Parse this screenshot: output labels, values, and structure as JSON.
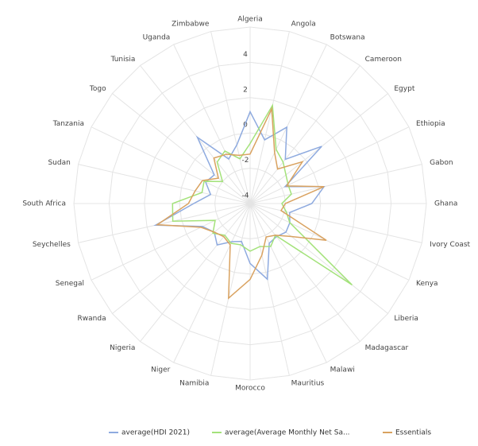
{
  "chart_data": {
    "type": "radar",
    "categories": [
      "Algeria",
      "Angola",
      "Botswana",
      "Cameroon",
      "Egypt",
      "Ethiopia",
      "Gabon",
      "Ghana",
      "Ivory Coast",
      "Kenya",
      "Liberia",
      "Madagascar",
      "Malawi",
      "Mauritius",
      "Morocco",
      "Namibia",
      "Niger",
      "Nigeria",
      "Rwanda",
      "Senegal",
      "Seychelles",
      "South Africa",
      "Sudan",
      "Tanzania",
      "Togo",
      "Tunisia",
      "Uganda",
      "Zimbabwe"
    ],
    "series": [
      {
        "name": "average(HDI 2021)",
        "color": "#8eaadf",
        "values": [
          1.2,
          -0.3,
          0.8,
          -0.8,
          1.2,
          -1.8,
          0.3,
          -0.5,
          -1.7,
          -1.5,
          -1.4,
          -1.6,
          -1.5,
          0.4,
          -0.6,
          -1.8,
          -1.6,
          -1.0,
          -1.4,
          -1.0,
          1.5,
          -0.8,
          -1.7,
          -1.2,
          -1.4,
          0.8,
          -1.2,
          -0.6
        ]
      },
      {
        "name": "average(Average Monthly Net Sa...",
        "color": "#a3e27a",
        "values": [
          -0.6,
          1.7,
          -0.6,
          -1.0,
          -1.4,
          -1.6,
          -1.6,
          -2.2,
          -1.9,
          -1.5,
          3.4,
          -1.7,
          -1.3,
          -1.5,
          -1.3,
          -1.6,
          -1.5,
          -1.7,
          -1.3,
          -1.8,
          0.5,
          0.4,
          -1.2,
          -1.1,
          -2.0,
          -1.0,
          -0.7,
          -1.4
        ]
      },
      {
        "name": "Essentials",
        "color": "#d9a260",
        "values": [
          -1.2,
          1.5,
          -0.8,
          -1.5,
          -0.2,
          -1.7,
          0.3,
          -2.0,
          -2.2,
          0.8,
          -1.0,
          -1.7,
          -1.9,
          -1.0,
          0.3,
          1.5,
          -1.4,
          -1.6,
          -1.4,
          -0.9,
          1.4,
          -0.5,
          -0.8,
          -1.0,
          -1.7,
          -0.7,
          -0.9,
          -1.2
        ]
      }
    ],
    "ylim": [
      -4,
      6
    ],
    "yticks": [
      -4,
      -2,
      0,
      2,
      4
    ],
    "grid": true
  }
}
